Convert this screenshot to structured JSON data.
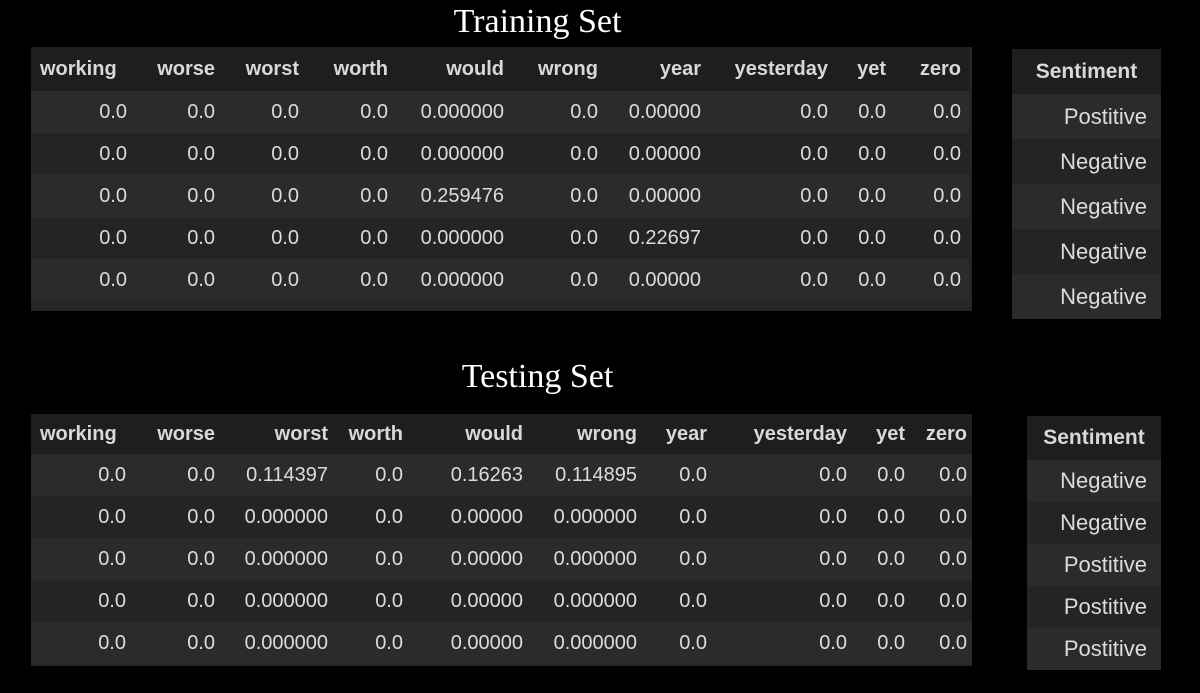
{
  "training": {
    "title": "Training Set",
    "columns": [
      "working",
      "worse",
      "worst",
      "worth",
      "would",
      "wrong",
      "year",
      "yesterday",
      "yet",
      "zero"
    ],
    "rows": [
      [
        "0.0",
        "0.0",
        "0.0",
        "0.0",
        "0.000000",
        "0.0",
        "0.00000",
        "0.0",
        "0.0",
        "0.0"
      ],
      [
        "0.0",
        "0.0",
        "0.0",
        "0.0",
        "0.000000",
        "0.0",
        "0.00000",
        "0.0",
        "0.0",
        "0.0"
      ],
      [
        "0.0",
        "0.0",
        "0.0",
        "0.0",
        "0.259476",
        "0.0",
        "0.00000",
        "0.0",
        "0.0",
        "0.0"
      ],
      [
        "0.0",
        "0.0",
        "0.0",
        "0.0",
        "0.000000",
        "0.0",
        "0.22697",
        "0.0",
        "0.0",
        "0.0"
      ],
      [
        "0.0",
        "0.0",
        "0.0",
        "0.0",
        "0.000000",
        "0.0",
        "0.00000",
        "0.0",
        "0.0",
        "0.0"
      ]
    ],
    "sentiment_header": "Sentiment",
    "sentiment": [
      "Postitive",
      "Negative",
      "Negative",
      "Negative",
      "Negative"
    ]
  },
  "testing": {
    "title": "Testing Set",
    "columns": [
      "working",
      "worse",
      "worst",
      "worth",
      "would",
      "wrong",
      "year",
      "yesterday",
      "yet",
      "zero"
    ],
    "rows": [
      [
        "0.0",
        "0.0",
        "0.114397",
        "0.0",
        "0.16263",
        "0.114895",
        "0.0",
        "0.0",
        "0.0",
        "0.0"
      ],
      [
        "0.0",
        "0.0",
        "0.000000",
        "0.0",
        "0.00000",
        "0.000000",
        "0.0",
        "0.0",
        "0.0",
        "0.0"
      ],
      [
        "0.0",
        "0.0",
        "0.000000",
        "0.0",
        "0.00000",
        "0.000000",
        "0.0",
        "0.0",
        "0.0",
        "0.0"
      ],
      [
        "0.0",
        "0.0",
        "0.000000",
        "0.0",
        "0.00000",
        "0.000000",
        "0.0",
        "0.0",
        "0.0",
        "0.0"
      ],
      [
        "0.0",
        "0.0",
        "0.000000",
        "0.0",
        "0.00000",
        "0.000000",
        "0.0",
        "0.0",
        "0.0",
        "0.0"
      ]
    ],
    "sentiment_header": "Sentiment",
    "sentiment": [
      "Negative",
      "Negative",
      "Postitive",
      "Postitive",
      "Postitive"
    ]
  },
  "colors": {
    "background": "#000000",
    "panel": "#262626",
    "header_row": "#1e1e1e",
    "text": "#dcdcdc"
  }
}
